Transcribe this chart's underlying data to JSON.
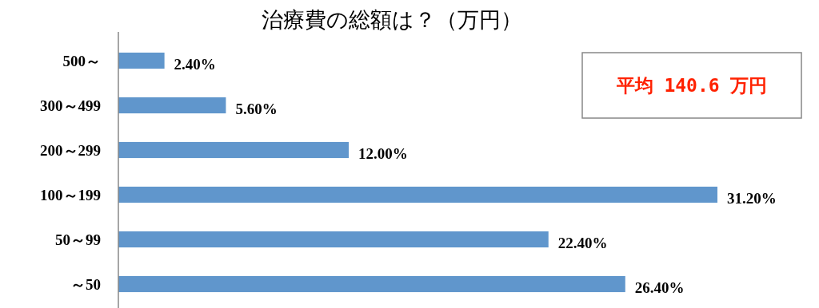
{
  "chart_data": {
    "type": "bar",
    "orientation": "horizontal",
    "title": "治療費の総額は？（万円）",
    "categories": [
      "500～",
      "300～499",
      "200～299",
      "100～199",
      "50～99",
      "～50"
    ],
    "values": [
      2.4,
      5.6,
      12,
      31.2,
      22.4,
      26.4
    ],
    "value_labels": [
      "2.40%",
      "5.60%",
      "12.00%",
      "31.20%",
      "22.40%",
      "26.40%"
    ],
    "color": "#6096cc",
    "annotations": [
      "平均 140.6 万円"
    ]
  }
}
